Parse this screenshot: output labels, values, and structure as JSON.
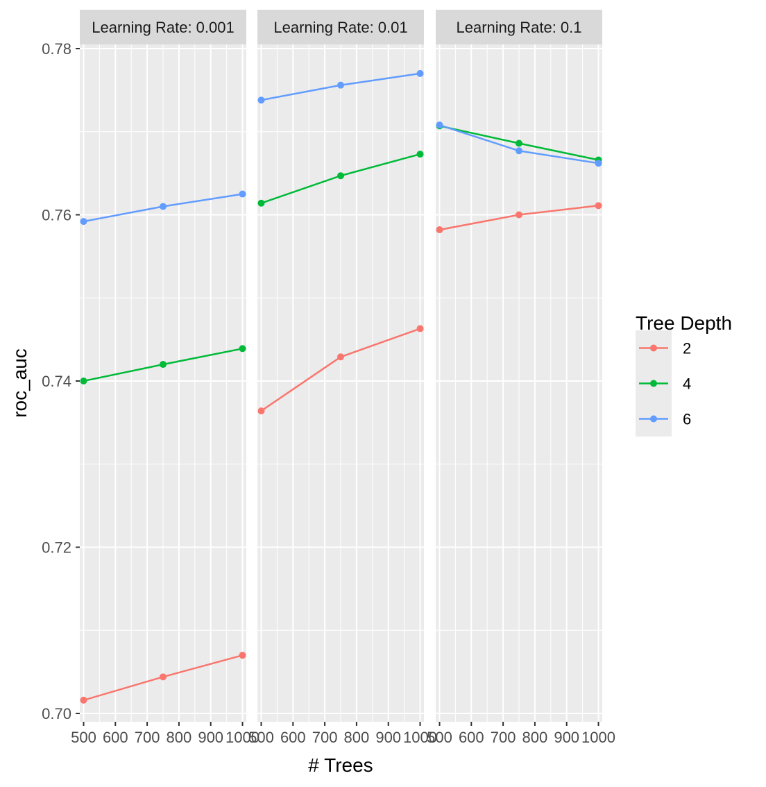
{
  "chart_data": {
    "type": "line",
    "xlabel": "# Trees",
    "ylabel": "roc_auc",
    "ylim": [
      0.699,
      0.7805
    ],
    "xlim": [
      488,
      1012
    ],
    "x_ticks": [
      500,
      600,
      700,
      800,
      900,
      1000
    ],
    "x_tick_labels": [
      "500",
      "600",
      "700",
      "800",
      "900",
      "1000"
    ],
    "y_ticks": [
      0.7,
      0.72,
      0.74,
      0.76,
      0.78
    ],
    "y_tick_labels": [
      "0.70",
      "0.72",
      "0.74",
      "0.76",
      "0.78"
    ],
    "grid": true,
    "legend": {
      "title": "Tree Depth",
      "placement": "right",
      "entries": [
        {
          "label": "2",
          "color": "#F8766D"
        },
        {
          "label": "4",
          "color": "#00BA38"
        },
        {
          "label": "6",
          "color": "#619CFF"
        }
      ]
    },
    "panels": [
      {
        "label": "Learning Rate: 0.001",
        "series": [
          {
            "depth": "2",
            "color": "#F8766D",
            "x": [
              500,
              750,
              1000
            ],
            "values": [
              0.7016,
              0.7044,
              0.707
            ]
          },
          {
            "depth": "4",
            "color": "#00BA38",
            "x": [
              500,
              750,
              1000
            ],
            "values": [
              0.74,
              0.742,
              0.7439
            ]
          },
          {
            "depth": "6",
            "color": "#619CFF",
            "x": [
              500,
              750,
              1000
            ],
            "values": [
              0.7592,
              0.761,
              0.7625
            ]
          }
        ]
      },
      {
        "label": "Learning Rate: 0.01",
        "series": [
          {
            "depth": "2",
            "color": "#F8766D",
            "x": [
              500,
              750,
              1000
            ],
            "values": [
              0.7364,
              0.7429,
              0.7463
            ]
          },
          {
            "depth": "4",
            "color": "#00BA38",
            "x": [
              500,
              750,
              1000
            ],
            "values": [
              0.7614,
              0.7647,
              0.7673
            ]
          },
          {
            "depth": "6",
            "color": "#619CFF",
            "x": [
              500,
              750,
              1000
            ],
            "values": [
              0.7738,
              0.7756,
              0.777
            ]
          }
        ]
      },
      {
        "label": "Learning Rate: 0.1",
        "series": [
          {
            "depth": "2",
            "color": "#F8766D",
            "x": [
              500,
              750,
              1000
            ],
            "values": [
              0.7582,
              0.76,
              0.7611
            ]
          },
          {
            "depth": "4",
            "color": "#00BA38",
            "x": [
              500,
              750,
              1000
            ],
            "values": [
              0.7707,
              0.7686,
              0.7666
            ]
          },
          {
            "depth": "6",
            "color": "#619CFF",
            "x": [
              500,
              750,
              1000
            ],
            "values": [
              0.7708,
              0.7677,
              0.7662
            ]
          }
        ]
      }
    ]
  }
}
